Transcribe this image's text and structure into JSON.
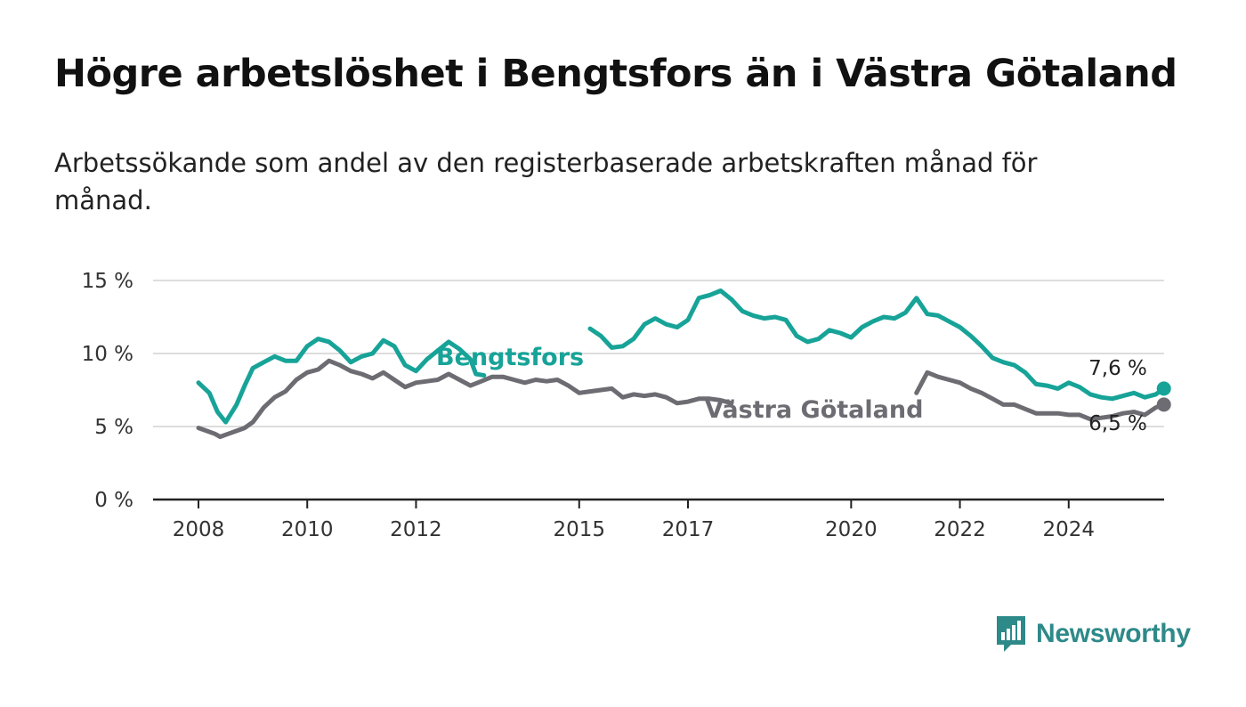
{
  "title": "Högre arbetslöshet i Bengtsfors än i Västra Götaland",
  "subtitle": "Arbetssökande som andel av den registerbaserade arbetskraften månad för månad.",
  "logo": {
    "text": "Newsworthy",
    "icon": "newsworthy-chart-icon"
  },
  "colors": {
    "bengtsfors": "#17a398",
    "vastra_gotaland": "#6d6c72",
    "axis": "#222222",
    "grid": "#dddddd"
  },
  "chart_data": {
    "type": "line",
    "title": "Högre arbetslöshet i Bengtsfors än i Västra Götaland",
    "subtitle": "Arbetssökande som andel av den registerbaserade arbetskraften månad för månad.",
    "xlabel": "",
    "ylabel": "",
    "x_range": [
      2007.2,
      2025.8
    ],
    "ylim": [
      0,
      15
    ],
    "y_ticks": [
      0,
      5,
      10,
      15
    ],
    "y_tick_labels": [
      "0 %",
      "5 %",
      "10 %",
      "15 %"
    ],
    "x_ticks": [
      2008,
      2010,
      2012,
      2015,
      2017,
      2020,
      2022,
      2024
    ],
    "x_tick_labels": [
      "2008",
      "2010",
      "2012",
      "2015",
      "2017",
      "2020",
      "2022",
      "2024"
    ],
    "grid": "horizontal",
    "series": [
      {
        "name": "Bengtsfors",
        "color": "#17a398",
        "end_label": "7,6 %",
        "points": [
          [
            2008.0,
            8.0
          ],
          [
            2008.2,
            7.3
          ],
          [
            2008.35,
            6.0
          ],
          [
            2008.5,
            5.3
          ],
          [
            2008.7,
            6.5
          ],
          [
            2008.85,
            7.8
          ],
          [
            2009.0,
            9.0
          ],
          [
            2009.2,
            9.4
          ],
          [
            2009.4,
            9.8
          ],
          [
            2009.6,
            9.5
          ],
          [
            2009.8,
            9.5
          ],
          [
            2010.0,
            10.5
          ],
          [
            2010.2,
            11.0
          ],
          [
            2010.4,
            10.8
          ],
          [
            2010.6,
            10.2
          ],
          [
            2010.8,
            9.4
          ],
          [
            2011.0,
            9.8
          ],
          [
            2011.2,
            10.0
          ],
          [
            2011.4,
            10.9
          ],
          [
            2011.6,
            10.5
          ],
          [
            2011.8,
            9.2
          ],
          [
            2012.0,
            8.8
          ],
          [
            2012.2,
            9.6
          ],
          [
            2012.4,
            10.2
          ],
          [
            2012.6,
            10.8
          ],
          [
            2012.8,
            10.3
          ],
          [
            2013.0,
            9.6
          ],
          [
            2013.1,
            8.6
          ],
          [
            2013.25,
            8.5
          ],
          [
            2015.2,
            11.7
          ],
          [
            2015.4,
            11.2
          ],
          [
            2015.6,
            10.4
          ],
          [
            2015.8,
            10.5
          ],
          [
            2016.0,
            11.0
          ],
          [
            2016.2,
            12.0
          ],
          [
            2016.4,
            12.4
          ],
          [
            2016.6,
            12.0
          ],
          [
            2016.8,
            11.8
          ],
          [
            2017.0,
            12.3
          ],
          [
            2017.2,
            13.8
          ],
          [
            2017.4,
            14.0
          ],
          [
            2017.6,
            14.3
          ],
          [
            2017.8,
            13.7
          ],
          [
            2018.0,
            12.9
          ],
          [
            2018.2,
            12.6
          ],
          [
            2018.4,
            12.4
          ],
          [
            2018.6,
            12.5
          ],
          [
            2018.8,
            12.3
          ],
          [
            2019.0,
            11.2
          ],
          [
            2019.2,
            10.8
          ],
          [
            2019.4,
            11.0
          ],
          [
            2019.6,
            11.6
          ],
          [
            2019.8,
            11.4
          ],
          [
            2020.0,
            11.1
          ],
          [
            2020.2,
            11.8
          ],
          [
            2020.4,
            12.2
          ],
          [
            2020.6,
            12.5
          ],
          [
            2020.8,
            12.4
          ],
          [
            2021.0,
            12.8
          ],
          [
            2021.2,
            13.8
          ],
          [
            2021.4,
            12.7
          ],
          [
            2021.6,
            12.6
          ],
          [
            2021.8,
            12.2
          ],
          [
            2022.0,
            11.8
          ],
          [
            2022.2,
            11.2
          ],
          [
            2022.4,
            10.5
          ],
          [
            2022.6,
            9.7
          ],
          [
            2022.8,
            9.4
          ],
          [
            2023.0,
            9.2
          ],
          [
            2023.2,
            8.7
          ],
          [
            2023.4,
            7.9
          ],
          [
            2023.6,
            7.8
          ],
          [
            2023.8,
            7.6
          ],
          [
            2024.0,
            8.0
          ],
          [
            2024.2,
            7.7
          ],
          [
            2024.4,
            7.2
          ],
          [
            2024.6,
            7.0
          ],
          [
            2024.8,
            6.9
          ],
          [
            2025.0,
            7.1
          ],
          [
            2025.2,
            7.3
          ],
          [
            2025.4,
            7.0
          ],
          [
            2025.6,
            7.2
          ],
          [
            2025.75,
            7.6
          ]
        ]
      },
      {
        "name": "Västra Götaland",
        "color": "#6d6c72",
        "end_label": "6,5 %",
        "points": [
          [
            2008.0,
            4.9
          ],
          [
            2008.15,
            4.7
          ],
          [
            2008.3,
            4.5
          ],
          [
            2008.4,
            4.3
          ],
          [
            2008.55,
            4.5
          ],
          [
            2008.7,
            4.7
          ],
          [
            2008.85,
            4.9
          ],
          [
            2009.0,
            5.3
          ],
          [
            2009.2,
            6.3
          ],
          [
            2009.4,
            7.0
          ],
          [
            2009.6,
            7.4
          ],
          [
            2009.8,
            8.2
          ],
          [
            2010.0,
            8.7
          ],
          [
            2010.2,
            8.9
          ],
          [
            2010.4,
            9.5
          ],
          [
            2010.6,
            9.2
          ],
          [
            2010.8,
            8.8
          ],
          [
            2011.0,
            8.6
          ],
          [
            2011.2,
            8.3
          ],
          [
            2011.4,
            8.7
          ],
          [
            2011.6,
            8.2
          ],
          [
            2011.8,
            7.7
          ],
          [
            2012.0,
            8.0
          ],
          [
            2012.2,
            8.1
          ],
          [
            2012.4,
            8.2
          ],
          [
            2012.6,
            8.6
          ],
          [
            2012.8,
            8.2
          ],
          [
            2013.0,
            7.8
          ],
          [
            2013.2,
            8.1
          ],
          [
            2013.4,
            8.4
          ],
          [
            2013.6,
            8.4
          ],
          [
            2013.8,
            8.2
          ],
          [
            2014.0,
            8.0
          ],
          [
            2014.2,
            8.2
          ],
          [
            2014.4,
            8.1
          ],
          [
            2014.6,
            8.2
          ],
          [
            2014.8,
            7.8
          ],
          [
            2015.0,
            7.3
          ],
          [
            2015.2,
            7.4
          ],
          [
            2015.4,
            7.5
          ],
          [
            2015.6,
            7.6
          ],
          [
            2015.8,
            7.0
          ],
          [
            2016.0,
            7.2
          ],
          [
            2016.2,
            7.1
          ],
          [
            2016.4,
            7.2
          ],
          [
            2016.6,
            7.0
          ],
          [
            2016.8,
            6.6
          ],
          [
            2017.0,
            6.7
          ],
          [
            2017.2,
            6.9
          ],
          [
            2017.4,
            6.9
          ],
          [
            2017.6,
            6.8
          ],
          [
            2017.8,
            6.6
          ],
          [
            2021.2,
            7.3
          ],
          [
            2021.4,
            8.7
          ],
          [
            2021.6,
            8.4
          ],
          [
            2021.8,
            8.2
          ],
          [
            2022.0,
            8.0
          ],
          [
            2022.2,
            7.6
          ],
          [
            2022.4,
            7.3
          ],
          [
            2022.6,
            6.9
          ],
          [
            2022.8,
            6.5
          ],
          [
            2023.0,
            6.5
          ],
          [
            2023.2,
            6.2
          ],
          [
            2023.4,
            5.9
          ],
          [
            2023.6,
            5.9
          ],
          [
            2023.8,
            5.9
          ],
          [
            2024.0,
            5.8
          ],
          [
            2024.2,
            5.8
          ],
          [
            2024.4,
            5.5
          ],
          [
            2024.6,
            5.6
          ],
          [
            2024.8,
            5.7
          ],
          [
            2025.0,
            5.9
          ],
          [
            2025.2,
            6.0
          ],
          [
            2025.4,
            5.8
          ],
          [
            2025.6,
            6.3
          ],
          [
            2025.75,
            6.5
          ]
        ]
      }
    ]
  }
}
